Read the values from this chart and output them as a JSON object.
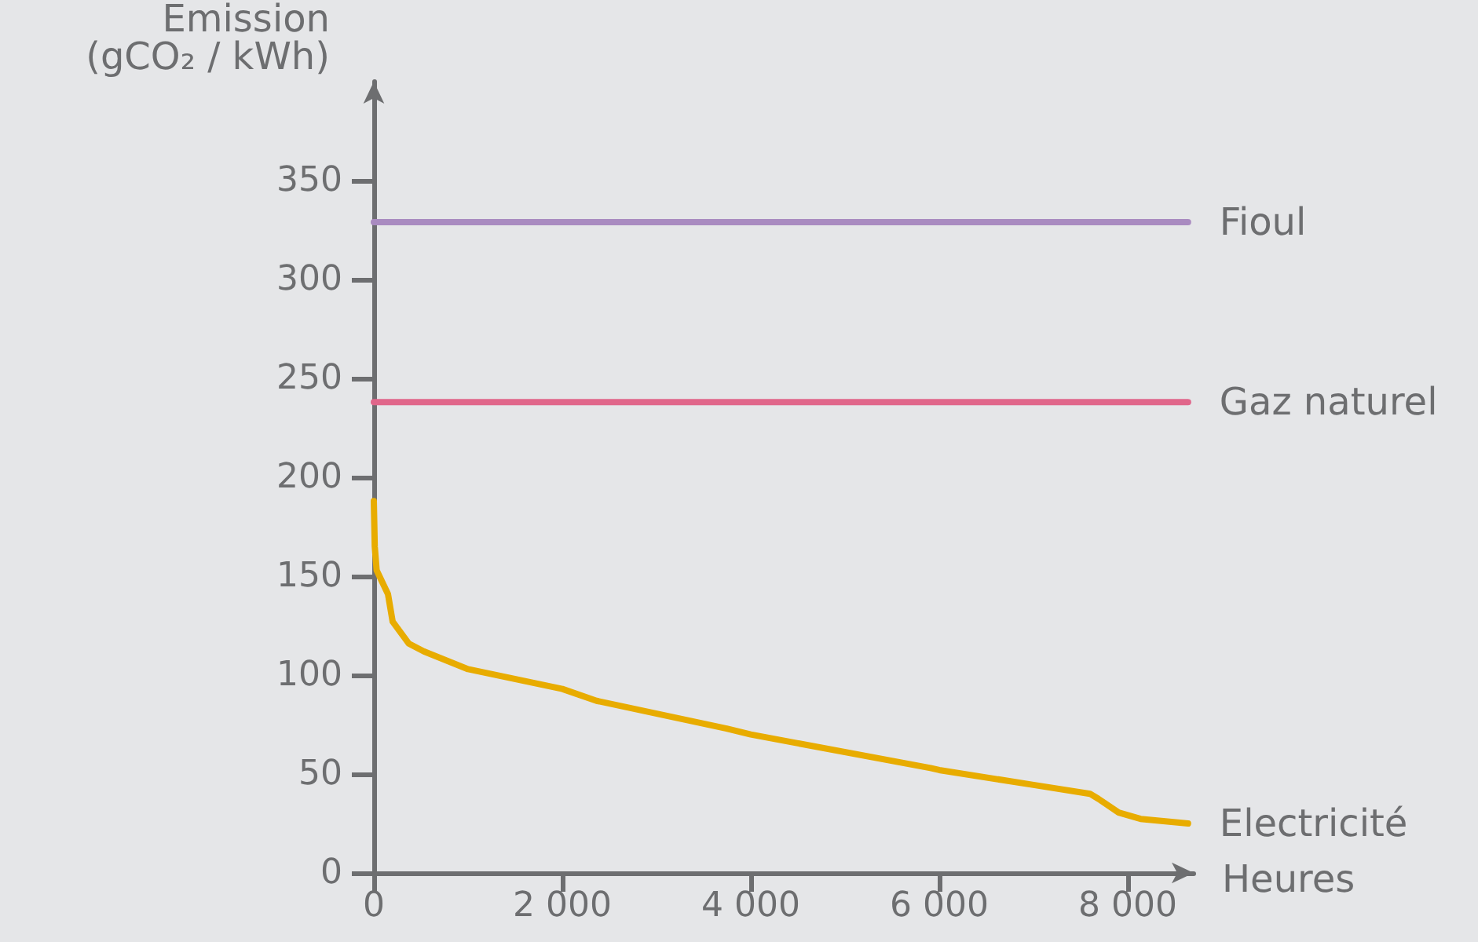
{
  "chart_data": {
    "type": "line",
    "xlabel": "Heures",
    "ylabel": "Emission\n(gCO₂ / kWh)",
    "xlim": [
      0,
      8700
    ],
    "ylim": [
      0,
      400
    ],
    "xticks": [
      0,
      {
        "value": 2000,
        "label": "2 000"
      },
      {
        "value": 4000,
        "label": "4 000"
      },
      {
        "value": 6000,
        "label": "6 000"
      },
      {
        "value": 8000,
        "label": "8 000"
      }
    ],
    "yticks": [
      0,
      50,
      100,
      150,
      200,
      250,
      300,
      350
    ],
    "grid": false,
    "legend": false,
    "marker": "none",
    "line_style": "solid",
    "series": [
      {
        "name": "Fioul",
        "color": "#a98bc0",
        "x": [
          0,
          8640
        ],
        "values": [
          329,
          329
        ]
      },
      {
        "name": "Gaz naturel",
        "color": "#e0668a",
        "x": [
          0,
          8640
        ],
        "values": [
          238,
          238
        ]
      },
      {
        "name": "Electricité",
        "color": "#e8ac00",
        "x": [
          0,
          10,
          30,
          150,
          200,
          370,
          530,
          1000,
          2000,
          2363,
          3744,
          4000,
          5907,
          6000,
          7000,
          7600,
          7687,
          7904,
          8136,
          8640
        ],
        "values": [
          188,
          165,
          153,
          141,
          127,
          116,
          112,
          103,
          93,
          87,
          73,
          70,
          53,
          52,
          44.5,
          40,
          37.5,
          30.5,
          27.3,
          25
        ]
      }
    ]
  }
}
